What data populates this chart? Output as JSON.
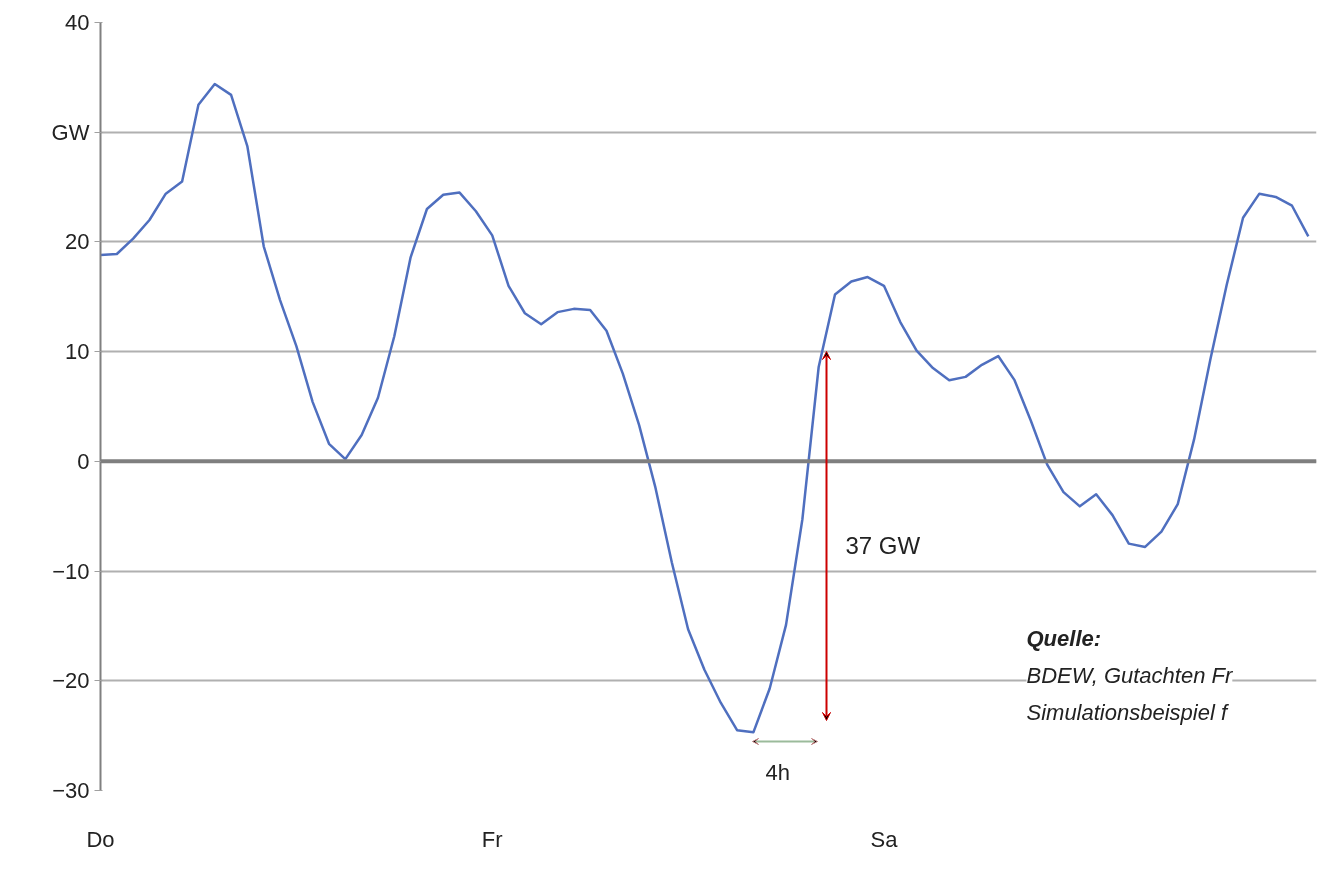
{
  "chart_data": {
    "type": "line",
    "ylim": [
      -30,
      40
    ],
    "categories": [
      "Do",
      null,
      null,
      null,
      null,
      null,
      null,
      null,
      null,
      null,
      null,
      null,
      null,
      null,
      null,
      null,
      null,
      null,
      null,
      null,
      null,
      null,
      null,
      null,
      "Fr",
      null,
      null,
      null,
      null,
      null,
      null,
      null,
      null,
      null,
      null,
      null,
      null,
      null,
      null,
      null,
      null,
      null,
      null,
      null,
      null,
      null,
      null,
      null,
      "Sa",
      null,
      null,
      null,
      null,
      null,
      null,
      null,
      null,
      null,
      null,
      null,
      null,
      null,
      null,
      null,
      null,
      null,
      null,
      null,
      null,
      null,
      null,
      null,
      null,
      null,
      null
    ],
    "yticks": [
      -30,
      -20,
      -10,
      0,
      10,
      20,
      {
        "value": 30,
        "label": "GW"
      },
      40
    ],
    "grid": "y",
    "marker": "none",
    "line_style": "solid",
    "ref_lines": [
      {
        "axis": "y",
        "value": 0,
        "color": "#7f7f7f"
      }
    ],
    "series": [
      {
        "color": "#4f6fbf",
        "values": [
          18.8,
          18.9,
          20.3,
          22.0,
          24.4,
          25.5,
          32.5,
          34.4,
          33.4,
          28.7,
          19.6,
          14.7,
          10.5,
          5.4,
          1.6,
          0.2,
          2.4,
          5.8,
          11.4,
          18.6,
          23.0,
          24.3,
          24.5,
          22.8,
          20.6,
          16.0,
          13.5,
          12.5,
          13.6,
          13.9,
          13.8,
          11.9,
          8.0,
          3.3,
          -2.4,
          -9.2,
          -15.3,
          -19.0,
          -22.0,
          -24.5,
          -24.7,
          -20.7,
          -14.9,
          -5.3,
          8.6,
          15.2,
          16.4,
          16.8,
          16.0,
          12.7,
          10.1,
          8.5,
          7.4,
          7.7,
          8.8,
          9.6,
          7.4,
          3.7,
          -0.3,
          -2.8,
          -4.1,
          -3.0,
          -4.9,
          -7.5,
          -7.8,
          -6.4,
          -3.9,
          2.0,
          9.3,
          16.1,
          22.2,
          24.4,
          24.1,
          23.3,
          20.5
        ]
      }
    ],
    "annotations": [
      "37 GW",
      "4h",
      "Quelle:",
      "BDEW, Gutachten Fr",
      "Simulationsbeispiel f"
    ]
  }
}
